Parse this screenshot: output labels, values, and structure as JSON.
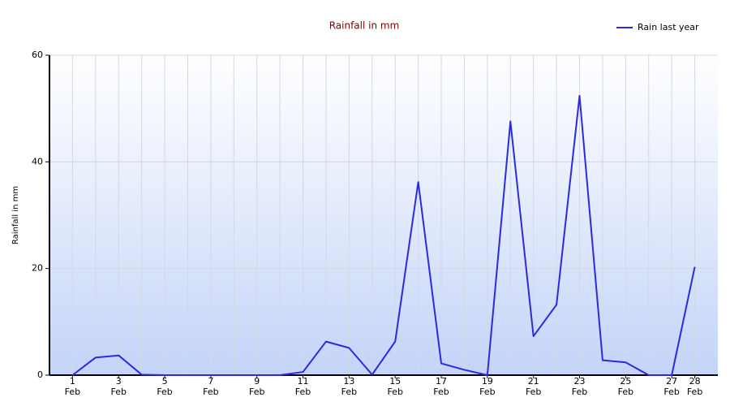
{
  "chart_data": {
    "type": "line",
    "title": "Rainfall in mm",
    "y_label": "Rainfall in mm",
    "categories": [
      "1\nFeb",
      null,
      "3\nFeb",
      null,
      "5\nFeb",
      null,
      "7\nFeb",
      null,
      "9\nFeb",
      null,
      "11\nFeb",
      null,
      "13\nFeb",
      null,
      "15\nFeb",
      null,
      "17\nFeb",
      null,
      "19\nFeb",
      null,
      "21\nFeb",
      null,
      "23\nFeb",
      null,
      "25\nFeb",
      null,
      "27\nFeb",
      "28\nFeb"
    ],
    "series": [
      {
        "name": "Rain last year",
        "color": "#2a2ae0",
        "values": [
          0,
          3.3,
          3.7,
          0.1,
          0,
          0,
          0,
          0,
          0,
          0,
          0.6,
          6.3,
          5.1,
          0.1,
          6.3,
          36.2,
          2.2,
          1.0,
          0,
          47.6,
          7.3,
          13.2,
          52.4,
          2.8,
          2.4,
          0,
          0,
          20.3
        ]
      }
    ],
    "ylim": [
      0,
      60
    ],
    "yticks": [
      0,
      20,
      40,
      60
    ],
    "grid": true,
    "legend": "top-right"
  }
}
